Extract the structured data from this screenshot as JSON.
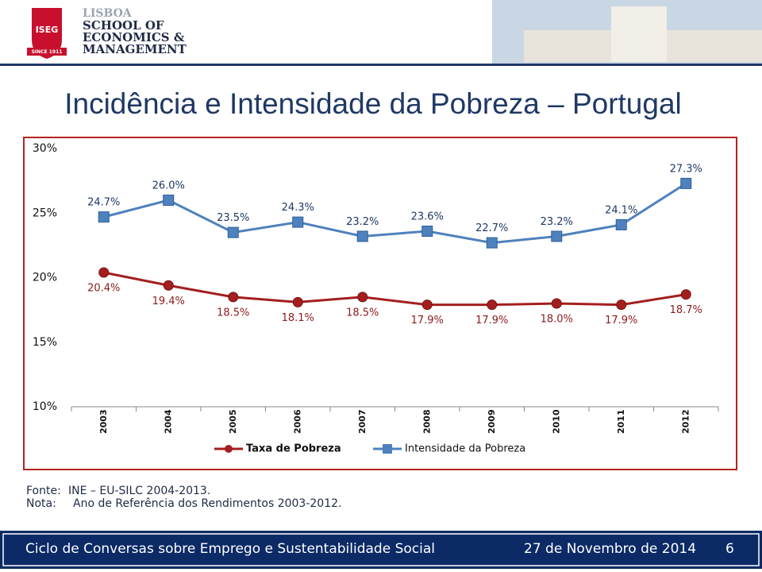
{
  "header": {
    "logo_mark": "ISEG",
    "logo_since": "SINCE 1911",
    "school_lines": [
      "LISBOA",
      "SCHOOL OF",
      "ECONOMICS &",
      "MANAGEMENT"
    ]
  },
  "title": "Incidência e Intensidade da Pobreza – Portugal",
  "chart_data": {
    "type": "line",
    "categories": [
      "2003",
      "2004",
      "2005",
      "2006",
      "2007",
      "2008",
      "2009",
      "2010",
      "2011",
      "2012"
    ],
    "series": [
      {
        "name": "Taxa de Pobreza",
        "color": "#a31f1f",
        "marker": "circle",
        "values": [
          20.4,
          19.4,
          18.5,
          18.1,
          18.5,
          17.9,
          17.9,
          18.0,
          17.9,
          18.7
        ],
        "value_labels": [
          "20.4%",
          "19.4%",
          "18.5%",
          "18.1%",
          "18.5%",
          "17.9%",
          "17.9%",
          "18.0%",
          "17.9%",
          "18.7%"
        ]
      },
      {
        "name": "Intensidade da Pobreza",
        "color": "#4f81bd",
        "marker": "square",
        "values": [
          24.7,
          26.0,
          23.5,
          24.3,
          23.2,
          23.6,
          22.7,
          23.2,
          24.1,
          27.3
        ],
        "value_labels": [
          "24.7%",
          "26.0%",
          "23.5%",
          "24.3%",
          "23.2%",
          "23.6%",
          "22.7%",
          "23.2%",
          "24.1%",
          "27.3%"
        ]
      }
    ],
    "ylim": [
      10,
      30
    ],
    "yticks": [
      {
        "value": 10,
        "label": "10%"
      },
      {
        "value": 15,
        "label": "15%"
      },
      {
        "value": 20,
        "label": "20%"
      },
      {
        "value": 25,
        "label": "25%"
      },
      {
        "value": 30,
        "label": "30%"
      }
    ],
    "grid": false,
    "legend": "bottom"
  },
  "notes": [
    {
      "label": "Fonte:",
      "text": "INE – EU-SILC 2004-2013."
    },
    {
      "label": "Nota:",
      "text": "Ano de Referência dos Rendimentos 2003-2012."
    }
  ],
  "footer": {
    "event": "Ciclo de Conversas sobre Emprego e Sustentabilidade Social",
    "date": "27 de Novembro de 2014",
    "page": "6"
  }
}
